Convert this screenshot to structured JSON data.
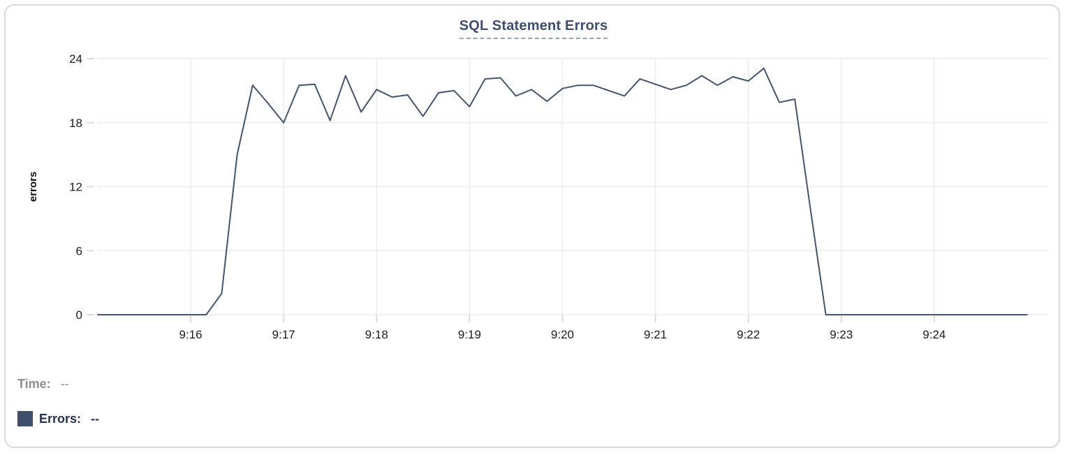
{
  "title": "SQL Statement Errors",
  "colors": {
    "series_line": "#44546f",
    "legend_swatch": "#3e4e6b",
    "gridline": "#ececec",
    "tick": "#dcdcdc",
    "axis_text": "#1c1c1e",
    "title_text": "#3e4d6e",
    "title_underline": "#98a2b8",
    "time_label": "#8e8e93",
    "errors_label": "#263254",
    "card_border": "#d9d9d9"
  },
  "chart_data": {
    "type": "line",
    "title": "SQL Statement Errors",
    "xlabel": "",
    "ylabel": "errors",
    "grid": true,
    "ylim": [
      0,
      24
    ],
    "y_ticks": [
      0,
      6,
      12,
      18,
      24
    ],
    "x_tick_labels": [
      "9:16",
      "9:17",
      "9:18",
      "9:19",
      "9:20",
      "9:21",
      "9:22",
      "9:23",
      "9:24"
    ],
    "x_range": [
      "9:15:00",
      "9:25:14"
    ],
    "series": [
      {
        "name": "Errors",
        "color": "#44546f",
        "points": [
          [
            "9:15:00",
            0
          ],
          [
            "9:15:10",
            0
          ],
          [
            "9:15:20",
            0
          ],
          [
            "9:15:30",
            0
          ],
          [
            "9:15:40",
            0
          ],
          [
            "9:15:50",
            0
          ],
          [
            "9:16:00",
            0
          ],
          [
            "9:16:10",
            0
          ],
          [
            "9:16:20",
            2
          ],
          [
            "9:16:30",
            15
          ],
          [
            "9:16:40",
            21.5
          ],
          [
            "9:16:50",
            19.8
          ],
          [
            "9:17:00",
            18
          ],
          [
            "9:17:10",
            21.5
          ],
          [
            "9:17:20",
            21.6
          ],
          [
            "9:17:30",
            18.2
          ],
          [
            "9:17:40",
            22.4
          ],
          [
            "9:17:50",
            19
          ],
          [
            "9:18:00",
            21.1
          ],
          [
            "9:18:10",
            20.4
          ],
          [
            "9:18:20",
            20.6
          ],
          [
            "9:18:30",
            18.6
          ],
          [
            "9:18:40",
            20.8
          ],
          [
            "9:18:50",
            21
          ],
          [
            "9:19:00",
            19.5
          ],
          [
            "9:19:10",
            22.1
          ],
          [
            "9:19:20",
            22.2
          ],
          [
            "9:19:30",
            20.5
          ],
          [
            "9:19:40",
            21.1
          ],
          [
            "9:19:50",
            20
          ],
          [
            "9:20:00",
            21.2
          ],
          [
            "9:20:10",
            21.5
          ],
          [
            "9:20:20",
            21.5
          ],
          [
            "9:20:30",
            21
          ],
          [
            "9:20:40",
            20.5
          ],
          [
            "9:20:50",
            22.1
          ],
          [
            "9:21:00",
            21.6
          ],
          [
            "9:21:10",
            21.1
          ],
          [
            "9:21:20",
            21.5
          ],
          [
            "9:21:30",
            22.4
          ],
          [
            "9:21:40",
            21.5
          ],
          [
            "9:21:50",
            22.3
          ],
          [
            "9:22:00",
            21.9
          ],
          [
            "9:22:10",
            23.1
          ],
          [
            "9:22:20",
            19.9
          ],
          [
            "9:22:30",
            20.2
          ],
          [
            "9:22:40",
            10
          ],
          [
            "9:22:50",
            0
          ],
          [
            "9:23:00",
            0
          ],
          [
            "9:23:10",
            0
          ],
          [
            "9:23:20",
            0
          ],
          [
            "9:23:30",
            0
          ],
          [
            "9:23:40",
            0
          ],
          [
            "9:23:50",
            0
          ],
          [
            "9:24:00",
            0
          ],
          [
            "9:24:10",
            0
          ],
          [
            "9:24:20",
            0
          ],
          [
            "9:24:30",
            0
          ],
          [
            "9:24:40",
            0
          ],
          [
            "9:24:50",
            0
          ],
          [
            "9:25:00",
            0
          ]
        ]
      }
    ]
  },
  "tooltip": {
    "time_label": "Time:",
    "time_value": "--",
    "errors_label": "Errors:",
    "errors_value": "--"
  }
}
